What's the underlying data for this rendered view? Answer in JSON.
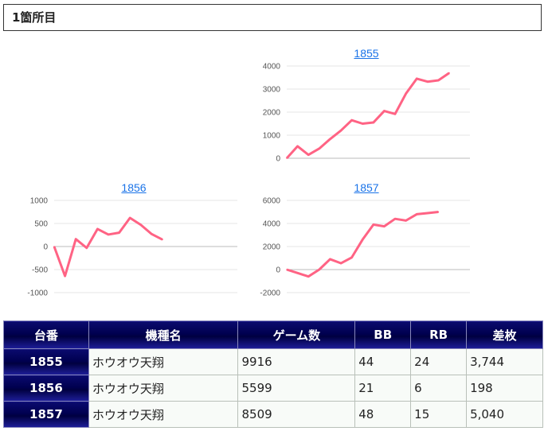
{
  "section": {
    "title": "1箇所目"
  },
  "colors": {
    "line": "#ff6384",
    "link": "#1a73e8",
    "header_bg": "#000050"
  },
  "charts": [
    {
      "id": "1855",
      "title": "1855",
      "chart_data": {
        "type": "line",
        "title": "1855",
        "xlabel": "",
        "ylabel": "",
        "ylim": [
          0,
          4000
        ],
        "yticks": [
          0,
          1000,
          2000,
          3000,
          4000
        ],
        "series": [
          {
            "values": [
              0,
              520,
              150,
              420,
              830,
              1200,
              1650,
              1500,
              1550,
              2050,
              1920,
              2800,
              3450,
              3320,
              3380,
              3700
            ]
          }
        ],
        "grid": true
      }
    },
    {
      "id": "1856",
      "title": "1856",
      "chart_data": {
        "type": "line",
        "title": "1856",
        "xlabel": "",
        "ylabel": "",
        "ylim": [
          -1000,
          1000
        ],
        "yticks": [
          -1000,
          -500,
          0,
          500,
          1000
        ],
        "series": [
          {
            "values": [
              0,
              -640,
              160,
              -30,
              380,
              260,
              300,
              620,
              470,
              270,
              150
            ]
          }
        ],
        "grid": true
      }
    },
    {
      "id": "1857",
      "title": "1857",
      "chart_data": {
        "type": "line",
        "title": "1857",
        "xlabel": "",
        "ylabel": "",
        "ylim": [
          -2000,
          6000
        ],
        "yticks": [
          -2000,
          0,
          2000,
          4000,
          6000
        ],
        "series": [
          {
            "values": [
              0,
              -300,
              -600,
              0,
              900,
              550,
              1050,
              2600,
              3900,
              3750,
              4400,
              4250,
              4800,
              4900,
              5000
            ]
          }
        ],
        "grid": true
      }
    }
  ],
  "table": {
    "headers": [
      "台番",
      "機種名",
      "ゲーム数",
      "BB",
      "RB",
      "差枚"
    ],
    "rows": [
      [
        "1855",
        "ホウオウ天翔",
        "9916",
        "44",
        "24",
        "3,744"
      ],
      [
        "1856",
        "ホウオウ天翔",
        "5599",
        "21",
        "6",
        "198"
      ],
      [
        "1857",
        "ホウオウ天翔",
        "8509",
        "48",
        "15",
        "5,040"
      ]
    ]
  }
}
